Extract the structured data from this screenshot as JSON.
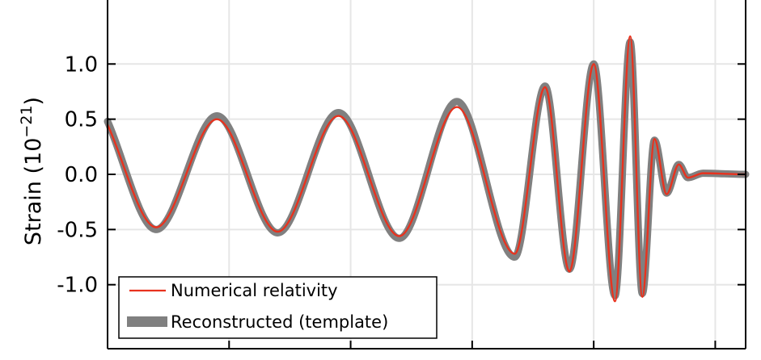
{
  "chart_data": {
    "type": "line",
    "title": "",
    "xlabel": "",
    "ylabel": "Strain (10",
    "ylabel_exponent": "−21",
    "ylabel_close": ")",
    "ylim": [
      -1.58,
      1.58
    ],
    "xlim": [
      0.25,
      0.46
    ],
    "yticks": [
      1.0,
      0.5,
      0.0,
      -0.5,
      -1.0
    ],
    "ytick_labels": [
      "1.0",
      "0.5",
      "0.0",
      "-0.5",
      "-1.0"
    ],
    "xticks": [
      0.29,
      0.33,
      0.37,
      0.41,
      0.45
    ],
    "grid": true,
    "legend_position": "bottom-left",
    "colors": {
      "numerical": "#e8321e",
      "reconstructed": "#808080"
    },
    "series": [
      {
        "name": "Numerical relativity",
        "style": "thin line",
        "x": [
          0.25,
          0.266,
          0.286,
          0.306,
          0.326,
          0.346,
          0.365,
          0.384,
          0.394,
          0.402,
          0.41,
          0.417,
          0.422,
          0.426,
          0.43,
          0.434,
          0.438,
          0.441,
          0.446,
          0.46
        ],
        "y": [
          0.45,
          -0.48,
          0.5,
          -0.52,
          0.53,
          -0.56,
          0.61,
          -0.72,
          0.79,
          -0.88,
          1.0,
          -1.15,
          1.25,
          -1.11,
          0.32,
          -0.18,
          0.09,
          -0.03,
          0.01,
          0.0
        ]
      },
      {
        "name": "Reconstructed (template)",
        "style": "thick band",
        "x": [
          0.25,
          0.266,
          0.286,
          0.306,
          0.326,
          0.346,
          0.365,
          0.384,
          0.394,
          0.402,
          0.41,
          0.417,
          0.422,
          0.426,
          0.43,
          0.434,
          0.438,
          0.441,
          0.446,
          0.46
        ],
        "y": [
          0.48,
          -0.5,
          0.53,
          -0.53,
          0.56,
          -0.58,
          0.66,
          -0.75,
          0.8,
          -0.86,
          1.0,
          -1.1,
          1.2,
          -1.08,
          0.31,
          -0.17,
          0.09,
          -0.03,
          0.01,
          0.0
        ]
      }
    ]
  }
}
